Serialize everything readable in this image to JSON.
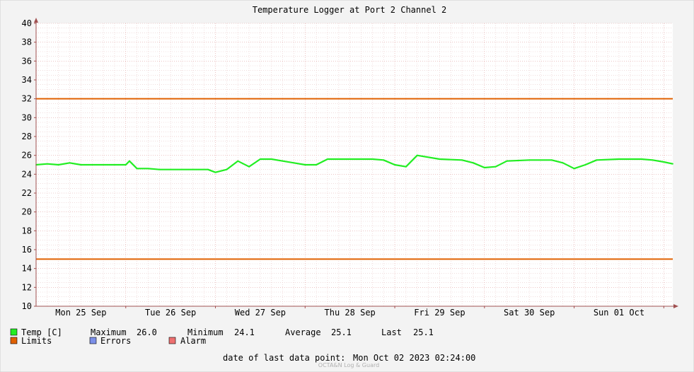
{
  "chart_data": {
    "type": "line",
    "title": "Temperature Logger at Port 2 Channel 2",
    "ylim": [
      10,
      40
    ],
    "y_ticks": [
      10,
      12,
      14,
      16,
      18,
      20,
      22,
      24,
      26,
      28,
      30,
      32,
      34,
      36,
      38,
      40
    ],
    "x_days": [
      "Mon 25 Sep",
      "Tue 26 Sep",
      "Wed 27 Sep",
      "Thu 28 Sep",
      "Fri 29 Sep",
      "Sat 30 Sep",
      "Sun 01 Oct"
    ],
    "x_range": [
      "2023-09-25T00:00",
      "2023-10-02T02:24"
    ],
    "grid": true,
    "series": [
      {
        "name": "Temp [C]",
        "color": "#22ee22",
        "x": [
          "2023-09-25T00:00",
          "2023-09-25T03:00",
          "2023-09-25T06:00",
          "2023-09-25T09:00",
          "2023-09-25T12:00",
          "2023-09-25T15:00",
          "2023-09-25T18:00",
          "2023-09-25T21:00",
          "2023-09-26T00:00",
          "2023-09-26T01:00",
          "2023-09-26T03:00",
          "2023-09-26T06:00",
          "2023-09-26T09:00",
          "2023-09-26T12:00",
          "2023-09-26T18:00",
          "2023-09-26T22:00",
          "2023-09-27T00:00",
          "2023-09-27T03:00",
          "2023-09-27T06:00",
          "2023-09-27T09:00",
          "2023-09-27T12:00",
          "2023-09-27T15:00",
          "2023-09-27T18:00",
          "2023-09-27T21:00",
          "2023-09-28T00:00",
          "2023-09-28T03:00",
          "2023-09-28T06:00",
          "2023-09-28T12:00",
          "2023-09-28T18:00",
          "2023-09-28T21:00",
          "2023-09-29T00:00",
          "2023-09-29T03:00",
          "2023-09-29T06:00",
          "2023-09-29T12:00",
          "2023-09-29T18:00",
          "2023-09-29T21:00",
          "2023-09-30T00:00",
          "2023-09-30T03:00",
          "2023-09-30T06:00",
          "2023-09-30T12:00",
          "2023-09-30T18:00",
          "2023-09-30T21:00",
          "2023-10-01T00:00",
          "2023-10-01T03:00",
          "2023-10-01T06:00",
          "2023-10-01T12:00",
          "2023-10-01T18:00",
          "2023-10-01T21:00",
          "2023-10-02T00:00",
          "2023-10-02T02:24"
        ],
        "y": [
          25.0,
          25.1,
          25.0,
          25.2,
          25.0,
          25.0,
          25.0,
          25.0,
          25.0,
          25.4,
          24.6,
          24.6,
          24.5,
          24.5,
          24.5,
          24.5,
          24.2,
          24.5,
          25.4,
          24.8,
          25.6,
          25.6,
          25.4,
          25.2,
          25.0,
          25.0,
          25.6,
          25.6,
          25.6,
          25.5,
          25.0,
          24.8,
          26.0,
          25.6,
          25.5,
          25.2,
          24.7,
          24.8,
          25.4,
          25.5,
          25.5,
          25.2,
          24.6,
          25.0,
          25.5,
          25.6,
          25.6,
          25.5,
          25.3,
          25.1
        ]
      },
      {
        "name": "Limits",
        "color": "#e06000",
        "values": [
          32,
          15
        ]
      }
    ]
  },
  "legend": [
    {
      "label": "Temp [C]",
      "color": "#22ee22"
    },
    {
      "label": "Limits",
      "color": "#e06000"
    },
    {
      "label": "Errors",
      "color": "#7b8fe8"
    },
    {
      "label": "Alarm",
      "color": "#ee7070"
    }
  ],
  "stats": {
    "max_label": "Maximum",
    "max_value": "26.0",
    "min_label": "Minimum",
    "min_value": "24.1",
    "avg_label": "Average",
    "avg_value": "25.1",
    "last_label": "Last",
    "last_value": "25.1"
  },
  "footer": {
    "last_point_label": "date of last data point:",
    "last_point_value": "Mon Oct 02 2023 02:24:00",
    "watermark": "OCTA&N Log & Guard"
  },
  "colors": {
    "grid_major": "#e0a0a0",
    "grid_minor": "#e8c8c8",
    "axis": "#a05050"
  }
}
